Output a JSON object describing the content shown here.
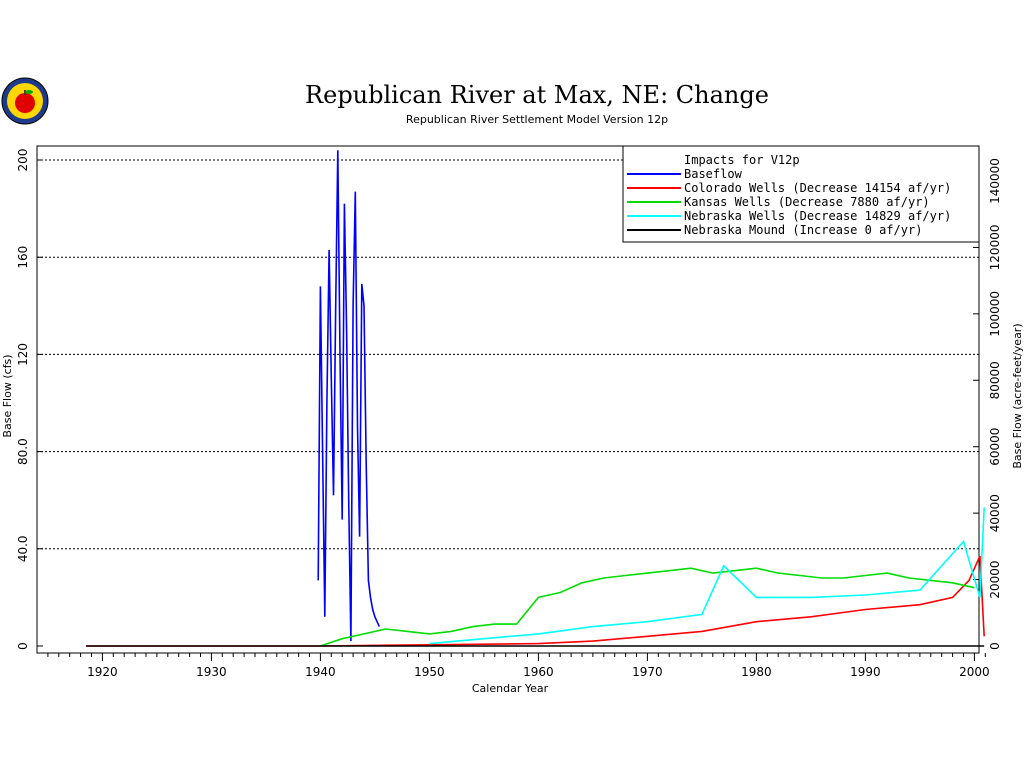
{
  "chart_data": {
    "type": "line",
    "title": "Republican River at Max, NE: Change",
    "subtitle": "Republican River Settlement Model Version 12p",
    "xlabel": "Calendar Year",
    "ylabel": "Base Flow (cfs)",
    "y2label": "Base Flow (acre-feet/year)",
    "xlim": [
      1914,
      2001
    ],
    "ylim": [
      0,
      205
    ],
    "y2lim": [
      0,
      148400
    ],
    "grid": "horizontal dotted at y-ticks",
    "legend_position": "top-right",
    "x_ticks": [
      "1920",
      "1930",
      "1940",
      "1950",
      "1960",
      "1970",
      "1980",
      "1990",
      "2000"
    ],
    "y_ticks": [
      "0",
      "40.0",
      "80.0",
      "120",
      "160",
      "200"
    ],
    "y2_ticks": [
      "0",
      "20000",
      "40000",
      "60000",
      "80000",
      "100000",
      "120000",
      "140000"
    ],
    "legend": {
      "header": "Impacts for V12p",
      "entries": [
        {
          "name": "Baseflow",
          "text": "Baseflow",
          "color": "#0000ff"
        },
        {
          "name": "Colorado Wells",
          "text": "Colorado Wells   (Decrease 14154 af/yr)",
          "color": "#ff0000"
        },
        {
          "name": "Kansas Wells",
          "text": "Kansas Wells    (Decrease  7880 af/yr)",
          "color": "#00dd00"
        },
        {
          "name": "Nebraska Wells",
          "text": "Nebraska Wells  (Decrease 14829 af/yr)",
          "color": "#00ffff"
        },
        {
          "name": "Nebraska Mound",
          "text": "Nebraska Mound (Increase     0 af/yr)",
          "color": "#000000"
        }
      ]
    },
    "series": [
      {
        "name": "Baseflow",
        "color": "#0000ff",
        "x": [
          1939.8,
          1940.0,
          1940.2,
          1940.4,
          1940.6,
          1940.8,
          1941.0,
          1941.2,
          1941.4,
          1941.6,
          1941.8,
          1942.0,
          1942.2,
          1942.4,
          1942.6,
          1942.8,
          1943.0,
          1943.2,
          1943.4,
          1943.6,
          1943.8,
          1944.0,
          1944.2,
          1944.4,
          1944.6,
          1944.8,
          1945.0,
          1945.2,
          1945.4
        ],
        "y": [
          27,
          148,
          80,
          12,
          100,
          163,
          110,
          62,
          140,
          204,
          120,
          52,
          182,
          130,
          60,
          2,
          140,
          187,
          90,
          45,
          149,
          140,
          75,
          27,
          20,
          15,
          12,
          10,
          8
        ]
      },
      {
        "name": "Colorado Wells",
        "color": "#ff0000",
        "x": [
          1918.5,
          1940.0,
          1950.0,
          1960.0,
          1965.0,
          1970.0,
          1975.0,
          1980.0,
          1985.0,
          1990.0,
          1995.0,
          1998.0,
          1999.5,
          2000.5,
          2000.9
        ],
        "y": [
          0,
          0,
          0.5,
          1,
          2,
          4,
          6,
          10,
          12,
          15,
          17,
          20,
          27,
          37,
          4
        ]
      },
      {
        "name": "Kansas Wells",
        "color": "#00dd00",
        "x": [
          1940.0,
          1942.0,
          1944.0,
          1946.0,
          1948.0,
          1950.0,
          1952.0,
          1954.0,
          1956.0,
          1958.0,
          1960.0,
          1962.0,
          1964.0,
          1966.0,
          1968.0,
          1970.0,
          1972.0,
          1974.0,
          1976.0,
          1978.0,
          1980.0,
          1982.0,
          1984.0,
          1986.0,
          1988.0,
          1990.0,
          1992.0,
          1994.0,
          1996.0,
          1998.0,
          2000.0
        ],
        "y": [
          0,
          3,
          5,
          7,
          6,
          5,
          6,
          8,
          9,
          9,
          20,
          22,
          26,
          28,
          29,
          30,
          31,
          32,
          30,
          31,
          32,
          30,
          29,
          28,
          28,
          29,
          30,
          28,
          27,
          26,
          24
        ]
      },
      {
        "name": "Nebraska Wells",
        "color": "#00ffff",
        "x": [
          1950.0,
          1955.0,
          1960.0,
          1965.0,
          1970.0,
          1975.0,
          1977.0,
          1980.0,
          1985.0,
          1990.0,
          1995.0,
          1999.0,
          2000.5,
          2000.9
        ],
        "y": [
          1,
          3,
          5,
          8,
          10,
          13,
          33,
          20,
          20,
          21,
          23,
          43,
          20,
          57
        ]
      },
      {
        "name": "Nebraska Mound",
        "color": "#000000",
        "x": [
          1918.5,
          2000.9
        ],
        "y": [
          0,
          0
        ]
      }
    ]
  }
}
